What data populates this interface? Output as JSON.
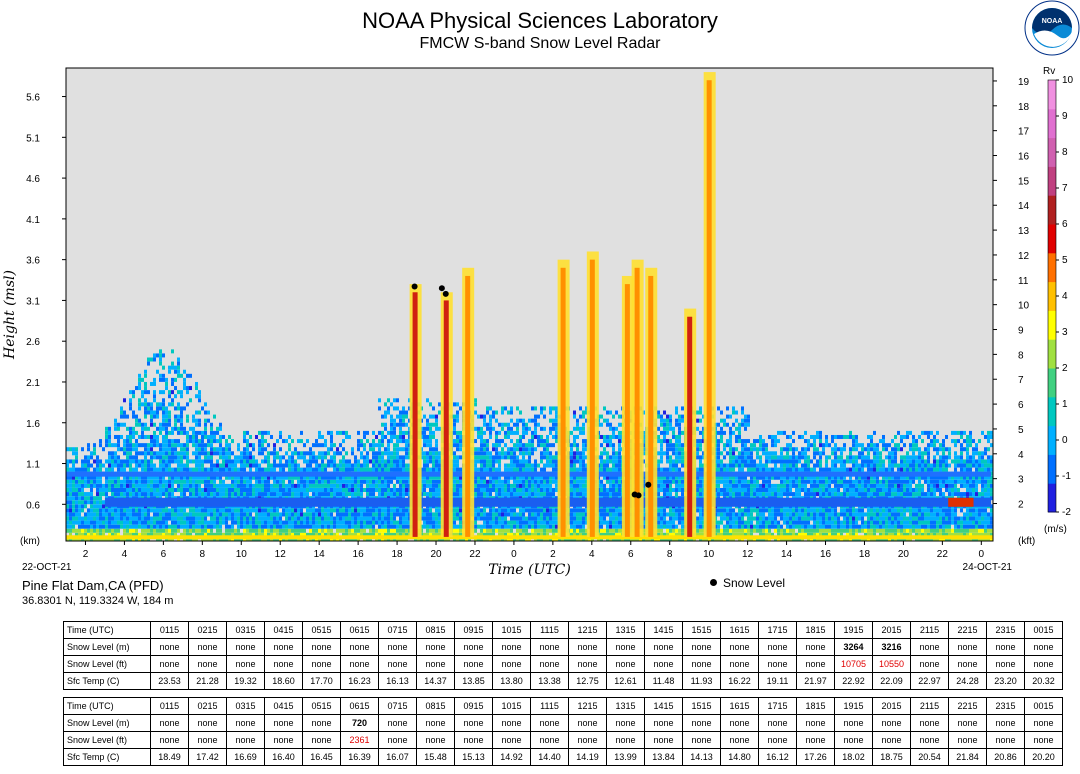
{
  "header": {
    "title": "NOAA Physical Sciences Laboratory",
    "subtitle": "FMCW S-band Snow Level Radar"
  },
  "logo": {
    "text": "NOAA",
    "icon": "noaa-logo"
  },
  "chart_data": {
    "type": "heatmap",
    "description_free": true,
    "ylabel_left": "Height (msl)",
    "ylabel_left_unit": "(km)",
    "ylabel_right_unit": "(kft)",
    "xlabel": "Time (UTC)",
    "x_start_label": "22-OCT-21",
    "x_end_label": "24-OCT-21",
    "x_tick_labels": [
      "2",
      "4",
      "6",
      "8",
      "10",
      "12",
      "14",
      "16",
      "18",
      "20",
      "22",
      "0",
      "2",
      "4",
      "6",
      "8",
      "10",
      "12",
      "14",
      "16",
      "18",
      "20",
      "22",
      "0"
    ],
    "x_tick_hours": [
      2,
      4,
      6,
      8,
      10,
      12,
      14,
      16,
      18,
      20,
      22,
      24,
      26,
      28,
      30,
      32,
      34,
      36,
      38,
      40,
      42,
      44,
      46,
      48
    ],
    "x_range_hours": [
      1,
      48.6
    ],
    "y_left_ticks": [
      "0.6",
      "1.1",
      "1.6",
      "2.1",
      "2.6",
      "3.1",
      "3.6",
      "4.1",
      "4.6",
      "5.1",
      "5.6"
    ],
    "y_left_values": [
      0.6,
      1.1,
      1.6,
      2.1,
      2.6,
      3.1,
      3.6,
      4.1,
      4.6,
      5.1,
      5.6
    ],
    "y_range_km": [
      0.15,
      5.95
    ],
    "y_right_ticks": [
      "2",
      "3",
      "4",
      "5",
      "6",
      "7",
      "8",
      "9",
      "10",
      "11",
      "12",
      "13",
      "14",
      "15",
      "16",
      "17",
      "18",
      "19"
    ],
    "y_right_values": [
      2,
      3,
      4,
      5,
      6,
      7,
      8,
      9,
      10,
      11,
      12,
      13,
      14,
      15,
      16,
      17,
      18,
      19
    ],
    "colorbar": {
      "title": "Rv",
      "unit": "(m/s)",
      "ticks": [
        "-2",
        "-1",
        "0",
        "1",
        "2",
        "3",
        "4",
        "5",
        "6",
        "7",
        "8",
        "9",
        "10"
      ],
      "tick_values": [
        -2,
        -1,
        0,
        1,
        2,
        3,
        4,
        5,
        6,
        7,
        8,
        9,
        10
      ],
      "colors": [
        "#2020e0",
        "#0070ff",
        "#00b0ff",
        "#00c8c0",
        "#40d080",
        "#a0e040",
        "#ffff00",
        "#ffc000",
        "#ff7000",
        "#e00000",
        "#b02020",
        "#c04080",
        "#d060b0",
        "#e070d0",
        "#f090e0"
      ]
    },
    "snow_level_points_hours_km": [
      [
        18.9,
        3.27
      ],
      [
        20.3,
        3.25
      ],
      [
        20.5,
        3.18
      ],
      [
        30.2,
        0.72
      ],
      [
        30.4,
        0.71
      ],
      [
        30.9,
        0.84
      ]
    ],
    "legend": "Snow Level",
    "background": "#e0e0e0"
  },
  "station": {
    "name": "Pine Flat Dam,CA (PFD)",
    "coords": "36.8301 N, 119.3324 W, 184 m"
  },
  "table1": {
    "rows": [
      {
        "label": "Time (UTC)",
        "values": [
          "0115",
          "0215",
          "0315",
          "0415",
          "0515",
          "0615",
          "0715",
          "0815",
          "0915",
          "1015",
          "1115",
          "1215",
          "1315",
          "1415",
          "1515",
          "1615",
          "1715",
          "1815",
          "1915",
          "2015",
          "2115",
          "2215",
          "2315",
          "0015"
        ]
      },
      {
        "label": "Snow Level (m)",
        "values": [
          "none",
          "none",
          "none",
          "none",
          "none",
          "none",
          "none",
          "none",
          "none",
          "none",
          "none",
          "none",
          "none",
          "none",
          "none",
          "none",
          "none",
          "none",
          "3264",
          "3216",
          "none",
          "none",
          "none",
          "none"
        ]
      },
      {
        "label": "Snow Level (ft)",
        "values": [
          "none",
          "none",
          "none",
          "none",
          "none",
          "none",
          "none",
          "none",
          "none",
          "none",
          "none",
          "none",
          "none",
          "none",
          "none",
          "none",
          "none",
          "none",
          "10705",
          "10550",
          "none",
          "none",
          "none",
          "none"
        ]
      },
      {
        "label": "Sfc Temp (C)",
        "values": [
          "23.53",
          "21.28",
          "19.32",
          "18.60",
          "17.70",
          "16.23",
          "16.13",
          "14.37",
          "13.85",
          "13.80",
          "13.38",
          "12.75",
          "12.61",
          "11.48",
          "11.93",
          "16.22",
          "19.11",
          "21.97",
          "22.92",
          "22.09",
          "22.97",
          "24.28",
          "23.20",
          "20.32"
        ]
      }
    ]
  },
  "table2": {
    "rows": [
      {
        "label": "Time (UTC)",
        "values": [
          "0115",
          "0215",
          "0315",
          "0415",
          "0515",
          "0615",
          "0715",
          "0815",
          "0915",
          "1015",
          "1115",
          "1215",
          "1315",
          "1415",
          "1515",
          "1615",
          "1715",
          "1815",
          "1915",
          "2015",
          "2115",
          "2215",
          "2315",
          "0015"
        ]
      },
      {
        "label": "Snow Level (m)",
        "values": [
          "none",
          "none",
          "none",
          "none",
          "none",
          "720",
          "none",
          "none",
          "none",
          "none",
          "none",
          "none",
          "none",
          "none",
          "none",
          "none",
          "none",
          "none",
          "none",
          "none",
          "none",
          "none",
          "none",
          "none"
        ]
      },
      {
        "label": "Snow Level (ft)",
        "values": [
          "none",
          "none",
          "none",
          "none",
          "none",
          "2361",
          "none",
          "none",
          "none",
          "none",
          "none",
          "none",
          "none",
          "none",
          "none",
          "none",
          "none",
          "none",
          "none",
          "none",
          "none",
          "none",
          "none",
          "none"
        ]
      },
      {
        "label": "Sfc Temp (C)",
        "values": [
          "18.49",
          "17.42",
          "16.69",
          "16.40",
          "16.45",
          "16.39",
          "16.07",
          "15.48",
          "15.13",
          "14.92",
          "14.40",
          "14.19",
          "13.99",
          "13.84",
          "14.13",
          "14.80",
          "16.12",
          "17.26",
          "18.02",
          "18.75",
          "20.54",
          "21.84",
          "20.86",
          "20.20"
        ]
      }
    ]
  }
}
